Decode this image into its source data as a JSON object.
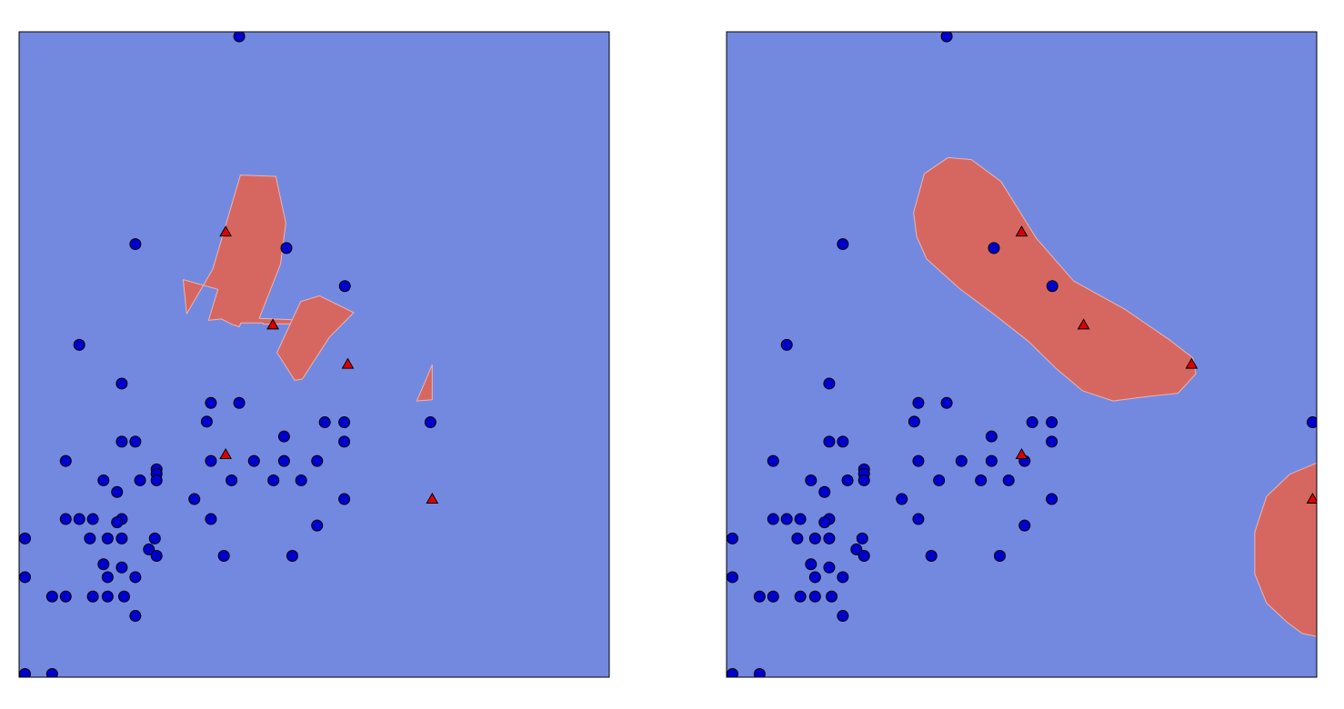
{
  "chart_data": [
    {
      "type": "scatter",
      "title": "",
      "xlabel": "",
      "ylabel": "",
      "xlim": [
        0,
        1
      ],
      "ylim": [
        0,
        1
      ],
      "grid": false,
      "legend": "none",
      "colors": {
        "background_class": "#7389e0",
        "region_class": "#d66760",
        "class0_marker": "#0000cc",
        "class1_marker": "#dd0000"
      },
      "regions": [
        {
          "name": "region-a",
          "points": [
            [
              0.375,
              0.778
            ],
            [
              0.435,
              0.776
            ],
            [
              0.452,
              0.704
            ],
            [
              0.443,
              0.64
            ],
            [
              0.407,
              0.556
            ],
            [
              0.515,
              0.552
            ],
            [
              0.513,
              0.548
            ],
            [
              0.414,
              0.547
            ],
            [
              0.413,
              0.549
            ],
            [
              0.376,
              0.549
            ],
            [
              0.373,
              0.543
            ],
            [
              0.36,
              0.547
            ],
            [
              0.343,
              0.555
            ],
            [
              0.321,
              0.553
            ],
            [
              0.337,
              0.601
            ],
            [
              0.278,
              0.616
            ],
            [
              0.284,
              0.563
            ],
            [
              0.328,
              0.632
            ]
          ]
        },
        {
          "name": "region-b",
          "points": [
            [
              0.477,
              0.582
            ],
            [
              0.509,
              0.591
            ],
            [
              0.567,
              0.565
            ],
            [
              0.526,
              0.527
            ],
            [
              0.48,
              0.462
            ],
            [
              0.467,
              0.46
            ],
            [
              0.437,
              0.503
            ]
          ]
        },
        {
          "name": "region-c",
          "points": [
            [
              0.7,
              0.484
            ],
            [
              0.7,
              0.43
            ],
            [
              0.674,
              0.428
            ]
          ]
        }
      ],
      "class0": [
        [
          0.373,
          0.993
        ],
        [
          0.197,
          0.671
        ],
        [
          0.453,
          0.665
        ],
        [
          0.552,
          0.606
        ],
        [
          0.102,
          0.515
        ],
        [
          0.174,
          0.455
        ],
        [
          0.325,
          0.425
        ],
        [
          0.373,
          0.425
        ],
        [
          0.318,
          0.396
        ],
        [
          0.518,
          0.395
        ],
        [
          0.551,
          0.395
        ],
        [
          0.449,
          0.373
        ],
        [
          0.174,
          0.365
        ],
        [
          0.197,
          0.365
        ],
        [
          0.551,
          0.365
        ],
        [
          0.079,
          0.335
        ],
        [
          0.325,
          0.335
        ],
        [
          0.398,
          0.335
        ],
        [
          0.449,
          0.335
        ],
        [
          0.505,
          0.335
        ],
        [
          0.233,
          0.322
        ],
        [
          0.233,
          0.315
        ],
        [
          0.143,
          0.305
        ],
        [
          0.205,
          0.305
        ],
        [
          0.233,
          0.305
        ],
        [
          0.36,
          0.305
        ],
        [
          0.431,
          0.305
        ],
        [
          0.478,
          0.305
        ],
        [
          0.166,
          0.287
        ],
        [
          0.297,
          0.276
        ],
        [
          0.551,
          0.276
        ],
        [
          0.079,
          0.245
        ],
        [
          0.102,
          0.245
        ],
        [
          0.125,
          0.245
        ],
        [
          0.174,
          0.245
        ],
        [
          0.166,
          0.24
        ],
        [
          0.325,
          0.245
        ],
        [
          0.505,
          0.235
        ],
        [
          0.01,
          0.215
        ],
        [
          0.12,
          0.215
        ],
        [
          0.15,
          0.215
        ],
        [
          0.174,
          0.215
        ],
        [
          0.23,
          0.215
        ],
        [
          0.22,
          0.198
        ],
        [
          0.233,
          0.188
        ],
        [
          0.347,
          0.188
        ],
        [
          0.463,
          0.188
        ],
        [
          0.143,
          0.175
        ],
        [
          0.174,
          0.17
        ],
        [
          0.15,
          0.155
        ],
        [
          0.197,
          0.155
        ],
        [
          0.01,
          0.155
        ],
        [
          0.056,
          0.125
        ],
        [
          0.079,
          0.125
        ],
        [
          0.125,
          0.125
        ],
        [
          0.15,
          0.125
        ],
        [
          0.178,
          0.125
        ],
        [
          0.197,
          0.095
        ],
        [
          0.01,
          0.005
        ],
        [
          0.056,
          0.005
        ],
        [
          0.697,
          0.395
        ]
      ],
      "class1": [
        [
          0.35,
          0.69
        ],
        [
          0.43,
          0.546
        ],
        [
          0.557,
          0.485
        ],
        [
          0.35,
          0.345
        ],
        [
          0.7,
          0.276
        ]
      ]
    },
    {
      "type": "scatter",
      "title": "",
      "xlabel": "",
      "ylabel": "",
      "xlim": [
        0,
        1
      ],
      "ylim": [
        0,
        1
      ],
      "grid": false,
      "legend": "none",
      "colors": {
        "background_class": "#7389e0",
        "region_class": "#d66760",
        "class0_marker": "#0000cc",
        "class1_marker": "#dd0000"
      },
      "regions": [
        {
          "name": "region-a",
          "points": [
            [
              0.415,
              0.802
            ],
            [
              0.465,
              0.768
            ],
            [
              0.525,
              0.68
            ],
            [
              0.588,
              0.614
            ],
            [
              0.675,
              0.57
            ],
            [
              0.75,
              0.523
            ],
            [
              0.79,
              0.495
            ],
            [
              0.795,
              0.47
            ],
            [
              0.765,
              0.44
            ],
            [
              0.705,
              0.434
            ],
            [
              0.655,
              0.428
            ],
            [
              0.603,
              0.444
            ],
            [
              0.56,
              0.477
            ],
            [
              0.512,
              0.52
            ],
            [
              0.455,
              0.561
            ],
            [
              0.395,
              0.602
            ],
            [
              0.339,
              0.648
            ],
            [
              0.322,
              0.683
            ],
            [
              0.317,
              0.72
            ],
            [
              0.335,
              0.78
            ],
            [
              0.375,
              0.805
            ]
          ]
        },
        {
          "name": "region-b",
          "points": [
            [
              1.0,
              0.332
            ],
            [
              0.955,
              0.315
            ],
            [
              0.915,
              0.28
            ],
            [
              0.895,
              0.225
            ],
            [
              0.895,
              0.16
            ],
            [
              0.915,
              0.115
            ],
            [
              0.95,
              0.085
            ],
            [
              0.975,
              0.068
            ],
            [
              1.0,
              0.063
            ]
          ]
        }
      ],
      "class0": [
        [
          0.373,
          0.993
        ],
        [
          0.197,
          0.671
        ],
        [
          0.453,
          0.665
        ],
        [
          0.552,
          0.606
        ],
        [
          0.102,
          0.515
        ],
        [
          0.174,
          0.455
        ],
        [
          0.325,
          0.425
        ],
        [
          0.373,
          0.425
        ],
        [
          0.318,
          0.396
        ],
        [
          0.518,
          0.395
        ],
        [
          0.551,
          0.395
        ],
        [
          0.449,
          0.373
        ],
        [
          0.174,
          0.365
        ],
        [
          0.197,
          0.365
        ],
        [
          0.551,
          0.365
        ],
        [
          0.079,
          0.335
        ],
        [
          0.325,
          0.335
        ],
        [
          0.398,
          0.335
        ],
        [
          0.449,
          0.335
        ],
        [
          0.505,
          0.335
        ],
        [
          0.233,
          0.322
        ],
        [
          0.233,
          0.315
        ],
        [
          0.143,
          0.305
        ],
        [
          0.205,
          0.305
        ],
        [
          0.233,
          0.305
        ],
        [
          0.36,
          0.305
        ],
        [
          0.431,
          0.305
        ],
        [
          0.478,
          0.305
        ],
        [
          0.166,
          0.287
        ],
        [
          0.297,
          0.276
        ],
        [
          0.551,
          0.276
        ],
        [
          0.079,
          0.245
        ],
        [
          0.102,
          0.245
        ],
        [
          0.125,
          0.245
        ],
        [
          0.174,
          0.245
        ],
        [
          0.166,
          0.24
        ],
        [
          0.325,
          0.245
        ],
        [
          0.505,
          0.235
        ],
        [
          0.01,
          0.215
        ],
        [
          0.12,
          0.215
        ],
        [
          0.15,
          0.215
        ],
        [
          0.174,
          0.215
        ],
        [
          0.23,
          0.215
        ],
        [
          0.22,
          0.198
        ],
        [
          0.233,
          0.188
        ],
        [
          0.347,
          0.188
        ],
        [
          0.463,
          0.188
        ],
        [
          0.143,
          0.175
        ],
        [
          0.174,
          0.17
        ],
        [
          0.15,
          0.155
        ],
        [
          0.197,
          0.155
        ],
        [
          0.01,
          0.155
        ],
        [
          0.056,
          0.125
        ],
        [
          0.079,
          0.125
        ],
        [
          0.125,
          0.125
        ],
        [
          0.15,
          0.125
        ],
        [
          0.178,
          0.125
        ],
        [
          0.197,
          0.095
        ],
        [
          0.01,
          0.005
        ],
        [
          0.056,
          0.005
        ],
        [
          0.993,
          0.395
        ]
      ],
      "class1": [
        [
          0.5,
          0.69
        ],
        [
          0.605,
          0.546
        ],
        [
          0.788,
          0.485
        ],
        [
          0.5,
          0.345
        ],
        [
          0.993,
          0.276
        ]
      ]
    }
  ]
}
